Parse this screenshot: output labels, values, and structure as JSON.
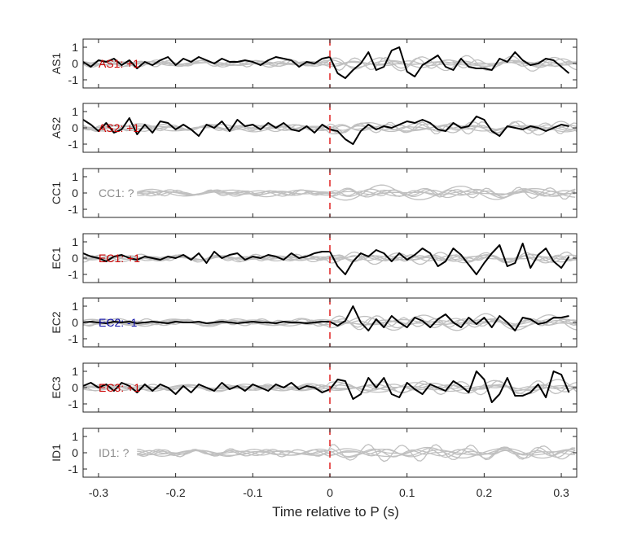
{
  "chart_data": {
    "type": "line",
    "title": "",
    "xlabel": "Time relative to P (s)",
    "xlim": [
      -0.32,
      0.32
    ],
    "xticks": [
      -0.3,
      -0.2,
      -0.1,
      0,
      0.1,
      0.2,
      0.3
    ],
    "xtick_labels": [
      "-0.3",
      "-0.2",
      "-0.1",
      "0",
      "0.1",
      "0.2",
      "0.3"
    ],
    "ylim": [
      -1.5,
      1.5
    ],
    "yticks": [
      1,
      0,
      -1
    ],
    "ytick_labels": [
      "1",
      "0",
      "-1"
    ],
    "marker_time": 0,
    "colors": {
      "positive": "#cc0000",
      "negative": "#1010aa",
      "unknown": "#8c8c8c",
      "main_trace": "#000000",
      "background_traces": "#c0c0c0",
      "marker": "#e02020",
      "axes": "#262626"
    },
    "panels": [
      {
        "ylabel": "AS1",
        "label": "AS1: +1",
        "polarity": "positive",
        "trace_t": [
          -0.32,
          -0.31,
          -0.3,
          -0.29,
          -0.28,
          -0.27,
          -0.26,
          -0.25,
          -0.24,
          -0.23,
          -0.22,
          -0.21,
          -0.2,
          -0.19,
          -0.18,
          -0.17,
          -0.16,
          -0.15,
          -0.14,
          -0.13,
          -0.12,
          -0.11,
          -0.1,
          -0.09,
          -0.08,
          -0.07,
          -0.06,
          -0.05,
          -0.04,
          -0.03,
          -0.02,
          -0.01,
          0,
          0.01,
          0.02,
          0.03,
          0.04,
          0.05,
          0.06,
          0.07,
          0.08,
          0.09,
          0.1,
          0.11,
          0.12,
          0.13,
          0.14,
          0.15,
          0.16,
          0.17,
          0.18,
          0.19,
          0.2,
          0.21,
          0.22,
          0.23,
          0.24,
          0.25,
          0.26,
          0.27,
          0.28,
          0.29,
          0.3,
          0.31
        ],
        "trace": [
          0.1,
          -0.2,
          0.2,
          0.1,
          0.3,
          -0.1,
          0.2,
          -0.3,
          0.1,
          -0.1,
          0.2,
          0.4,
          -0.1,
          0.3,
          0.1,
          0.4,
          0.2,
          0.0,
          0.3,
          0.1,
          0.1,
          0.2,
          0.1,
          -0.1,
          0.2,
          0.4,
          0.3,
          0.2,
          -0.2,
          0.1,
          0.0,
          0.3,
          0.4,
          -0.6,
          -0.9,
          -0.4,
          0.0,
          0.7,
          -0.4,
          -0.2,
          0.8,
          1.0,
          -0.5,
          -0.8,
          -0.1,
          0.2,
          0.5,
          -0.2,
          -0.4,
          0.3,
          -0.2,
          -0.3,
          -0.3,
          -0.4,
          0.3,
          0.1,
          0.7,
          0.2,
          -0.1,
          0.0,
          0.3,
          0.2,
          -0.2,
          -0.6
        ]
      },
      {
        "ylabel": "AS2",
        "label": "AS2: +1",
        "polarity": "positive",
        "trace_t": [
          -0.32,
          -0.31,
          -0.3,
          -0.29,
          -0.28,
          -0.27,
          -0.26,
          -0.25,
          -0.24,
          -0.23,
          -0.22,
          -0.21,
          -0.2,
          -0.19,
          -0.18,
          -0.17,
          -0.16,
          -0.15,
          -0.14,
          -0.13,
          -0.12,
          -0.11,
          -0.1,
          -0.09,
          -0.08,
          -0.07,
          -0.06,
          -0.05,
          -0.04,
          -0.03,
          -0.02,
          -0.01,
          0,
          0.01,
          0.02,
          0.03,
          0.04,
          0.05,
          0.06,
          0.07,
          0.08,
          0.09,
          0.1,
          0.11,
          0.12,
          0.13,
          0.14,
          0.15,
          0.16,
          0.17,
          0.18,
          0.19,
          0.2,
          0.21,
          0.22,
          0.23,
          0.24,
          0.25,
          0.26,
          0.27,
          0.28,
          0.29,
          0.3,
          0.31
        ],
        "trace": [
          0.5,
          0.2,
          -0.2,
          0.3,
          -0.3,
          -0.1,
          0.6,
          -0.4,
          0.2,
          -0.3,
          0.4,
          0.3,
          -0.1,
          0.2,
          -0.1,
          -0.5,
          0.2,
          0.0,
          0.4,
          -0.2,
          0.5,
          0.1,
          0.2,
          -0.1,
          0.3,
          0.0,
          0.3,
          -0.1,
          -0.2,
          0.1,
          -0.3,
          0.2,
          -0.1,
          -0.2,
          -0.7,
          -1.0,
          -0.2,
          0.2,
          -0.1,
          0.1,
          0.0,
          0.2,
          0.4,
          0.3,
          0.5,
          0.3,
          -0.1,
          -0.2,
          0.3,
          0.0,
          0.1,
          0.7,
          0.5,
          -0.2,
          -0.5,
          0.1,
          0.0,
          -0.1,
          0.1,
          0.0,
          -0.2,
          0.0,
          0.2,
          0.1
        ]
      },
      {
        "ylabel": "CC1",
        "label": "CC1: ?",
        "polarity": "unknown",
        "trace_t": [],
        "trace": []
      },
      {
        "ylabel": "EC1",
        "label": "EC1: +1",
        "polarity": "positive",
        "trace_t": [
          -0.32,
          -0.31,
          -0.3,
          -0.29,
          -0.28,
          -0.27,
          -0.26,
          -0.25,
          -0.24,
          -0.23,
          -0.22,
          -0.21,
          -0.2,
          -0.19,
          -0.18,
          -0.17,
          -0.16,
          -0.15,
          -0.14,
          -0.13,
          -0.12,
          -0.11,
          -0.1,
          -0.09,
          -0.08,
          -0.07,
          -0.06,
          -0.05,
          -0.04,
          -0.03,
          -0.02,
          -0.01,
          0,
          0.01,
          0.02,
          0.03,
          0.04,
          0.05,
          0.06,
          0.07,
          0.08,
          0.09,
          0.1,
          0.11,
          0.12,
          0.13,
          0.14,
          0.15,
          0.16,
          0.17,
          0.18,
          0.19,
          0.2,
          0.21,
          0.22,
          0.23,
          0.24,
          0.25,
          0.26,
          0.27,
          0.28,
          0.29,
          0.3,
          0.31
        ],
        "trace": [
          0.3,
          0.1,
          0.0,
          -0.2,
          0.1,
          0.2,
          0.0,
          -0.1,
          0.1,
          0.0,
          -0.1,
          0.1,
          0.0,
          0.2,
          -0.1,
          0.3,
          -0.3,
          0.4,
          0.0,
          0.2,
          0.3,
          -0.1,
          0.1,
          0.0,
          0.2,
          0.1,
          -0.1,
          0.3,
          0.0,
          0.1,
          0.3,
          0.4,
          0.4,
          -0.5,
          -1.0,
          -0.2,
          0.3,
          0.1,
          0.5,
          0.3,
          -0.2,
          0.3,
          -0.1,
          0.2,
          0.6,
          0.3,
          -0.5,
          -0.2,
          0.6,
          0.2,
          -0.4,
          -1.0,
          -0.3,
          0.3,
          0.8,
          -0.5,
          -0.3,
          0.9,
          -0.6,
          0.2,
          0.6,
          -0.2,
          -0.6,
          0.1
        ]
      },
      {
        "ylabel": "EC2",
        "label": "EC2: -1",
        "polarity": "negative",
        "trace_t": [
          -0.32,
          -0.31,
          -0.3,
          -0.29,
          -0.28,
          -0.27,
          -0.26,
          -0.25,
          -0.24,
          -0.23,
          -0.22,
          -0.21,
          -0.2,
          -0.19,
          -0.18,
          -0.17,
          -0.16,
          -0.15,
          -0.14,
          -0.13,
          -0.12,
          -0.11,
          -0.1,
          -0.09,
          -0.08,
          -0.07,
          -0.06,
          -0.05,
          -0.04,
          -0.03,
          -0.02,
          -0.01,
          0,
          0.01,
          0.02,
          0.03,
          0.04,
          0.05,
          0.06,
          0.07,
          0.08,
          0.09,
          0.1,
          0.11,
          0.12,
          0.13,
          0.14,
          0.15,
          0.16,
          0.17,
          0.18,
          0.19,
          0.2,
          0.21,
          0.22,
          0.23,
          0.24,
          0.25,
          0.26,
          0.27,
          0.28,
          0.29,
          0.3,
          0.31
        ],
        "trace": [
          0.0,
          0.05,
          0.0,
          -0.05,
          0.05,
          0.0,
          0.05,
          -0.05,
          0.0,
          0.05,
          0.0,
          -0.05,
          0.05,
          0.0,
          0.0,
          0.05,
          -0.05,
          0.0,
          0.05,
          0.0,
          -0.05,
          0.0,
          0.05,
          0.0,
          0.0,
          -0.05,
          0.05,
          0.0,
          0.0,
          -0.05,
          0.0,
          0.05,
          0.05,
          -0.2,
          0.1,
          1.0,
          0.0,
          -0.5,
          0.2,
          -0.3,
          0.4,
          0.0,
          -0.3,
          0.3,
          0.1,
          -0.3,
          0.2,
          0.5,
          0.0,
          -0.3,
          0.3,
          -0.1,
          0.3,
          -0.3,
          0.4,
          0.0,
          -0.5,
          0.3,
          0.2,
          -0.1,
          0.0,
          0.3,
          0.3,
          0.4
        ]
      },
      {
        "ylabel": "EC3",
        "label": "EC3: +1",
        "polarity": "positive",
        "trace_t": [
          -0.32,
          -0.31,
          -0.3,
          -0.29,
          -0.28,
          -0.27,
          -0.26,
          -0.25,
          -0.24,
          -0.23,
          -0.22,
          -0.21,
          -0.2,
          -0.19,
          -0.18,
          -0.17,
          -0.16,
          -0.15,
          -0.14,
          -0.13,
          -0.12,
          -0.11,
          -0.1,
          -0.09,
          -0.08,
          -0.07,
          -0.06,
          -0.05,
          -0.04,
          -0.03,
          -0.02,
          -0.01,
          0,
          0.01,
          0.02,
          0.03,
          0.04,
          0.05,
          0.06,
          0.07,
          0.08,
          0.09,
          0.1,
          0.11,
          0.12,
          0.13,
          0.14,
          0.15,
          0.16,
          0.17,
          0.18,
          0.19,
          0.2,
          0.21,
          0.22,
          0.23,
          0.24,
          0.25,
          0.26,
          0.27,
          0.28,
          0.29,
          0.3,
          0.31
        ],
        "trace": [
          0.1,
          0.3,
          0.0,
          0.2,
          -0.2,
          0.3,
          0.1,
          -0.3,
          0.2,
          -0.2,
          0.2,
          0.0,
          -0.4,
          0.1,
          -0.3,
          0.2,
          0.0,
          -0.2,
          0.3,
          -0.1,
          0.1,
          -0.2,
          0.2,
          0.0,
          -0.2,
          0.2,
          0.0,
          0.3,
          -0.1,
          0.1,
          0.0,
          -0.3,
          -0.1,
          0.5,
          0.4,
          -0.7,
          -0.4,
          0.6,
          0.0,
          0.6,
          -0.4,
          -0.6,
          0.3,
          -0.1,
          -0.4,
          0.2,
          0.0,
          -0.2,
          0.4,
          0.1,
          -0.3,
          1.0,
          0.5,
          -0.9,
          -0.4,
          0.6,
          -0.5,
          -0.5,
          -0.3,
          0.2,
          -0.6,
          1.0,
          0.8,
          -0.3
        ]
      },
      {
        "ylabel": "ID1",
        "label": "ID1: ?",
        "polarity": "unknown",
        "trace_t": [],
        "trace": []
      }
    ]
  }
}
